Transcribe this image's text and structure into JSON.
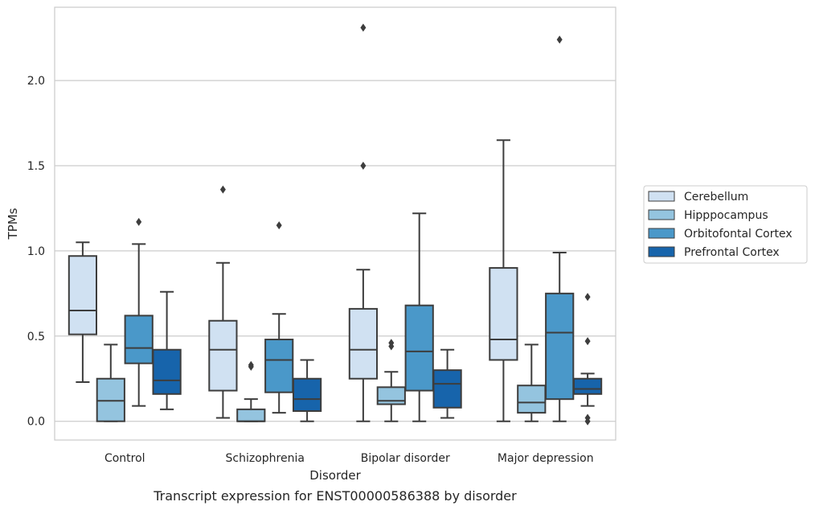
{
  "chart_data": {
    "type": "boxplot",
    "caption": "Transcript expression for ENST00000586388 by disorder",
    "xlabel": "Disorder",
    "ylabel": "TPMs",
    "ylim": [
      -0.11,
      2.43
    ],
    "yticks": [
      0.0,
      0.5,
      1.0,
      1.5,
      2.0
    ],
    "ytick_labels": [
      "0.0",
      "0.5",
      "1.0",
      "1.5",
      "2.0"
    ],
    "grid": "horizontal",
    "legend_position": "right",
    "categories": [
      "Control",
      "Schizophrenia",
      "Bipolar disorder",
      "Major depression"
    ],
    "series": [
      {
        "name": "Cerebellum",
        "color": "#d0e1f2",
        "boxes": [
          {
            "whislo": 0.23,
            "q1": 0.51,
            "med": 0.65,
            "q3": 0.97,
            "whishi": 1.05,
            "fliers": []
          },
          {
            "whislo": 0.02,
            "q1": 0.18,
            "med": 0.42,
            "q3": 0.59,
            "whishi": 0.93,
            "fliers": [
              1.36
            ]
          },
          {
            "whislo": 0.0,
            "q1": 0.25,
            "med": 0.42,
            "q3": 0.66,
            "whishi": 0.89,
            "fliers": [
              1.5,
              2.31
            ]
          },
          {
            "whislo": 0.0,
            "q1": 0.36,
            "med": 0.48,
            "q3": 0.9,
            "whishi": 1.65,
            "fliers": []
          }
        ]
      },
      {
        "name": "Hipppocampus",
        "color": "#94c4df",
        "boxes": [
          {
            "whislo": 0.0,
            "q1": 0.0,
            "med": 0.12,
            "q3": 0.25,
            "whishi": 0.45,
            "fliers": []
          },
          {
            "whislo": 0.0,
            "q1": 0.0,
            "med": 0.0,
            "q3": 0.07,
            "whishi": 0.13,
            "fliers": [
              0.32,
              0.33
            ]
          },
          {
            "whislo": 0.0,
            "q1": 0.1,
            "med": 0.12,
            "q3": 0.2,
            "whishi": 0.29,
            "fliers": [
              0.44,
              0.46
            ]
          },
          {
            "whislo": 0.0,
            "q1": 0.05,
            "med": 0.11,
            "q3": 0.21,
            "whishi": 0.45,
            "fliers": []
          }
        ]
      },
      {
        "name": "Orbitofontal Cortex",
        "color": "#4a98c9",
        "boxes": [
          {
            "whislo": 0.09,
            "q1": 0.34,
            "med": 0.43,
            "q3": 0.62,
            "whishi": 1.04,
            "fliers": [
              1.17
            ]
          },
          {
            "whislo": 0.05,
            "q1": 0.17,
            "med": 0.36,
            "q3": 0.48,
            "whishi": 0.63,
            "fliers": [
              1.15
            ]
          },
          {
            "whislo": 0.0,
            "q1": 0.18,
            "med": 0.41,
            "q3": 0.68,
            "whishi": 1.22,
            "fliers": []
          },
          {
            "whislo": 0.0,
            "q1": 0.13,
            "med": 0.52,
            "q3": 0.75,
            "whishi": 0.99,
            "fliers": [
              2.24
            ]
          }
        ]
      },
      {
        "name": "Prefrontal Cortex",
        "color": "#1764ab",
        "boxes": [
          {
            "whislo": 0.07,
            "q1": 0.16,
            "med": 0.24,
            "q3": 0.42,
            "whishi": 0.76,
            "fliers": []
          },
          {
            "whislo": 0.0,
            "q1": 0.06,
            "med": 0.13,
            "q3": 0.25,
            "whishi": 0.36,
            "fliers": []
          },
          {
            "whislo": 0.02,
            "q1": 0.08,
            "med": 0.22,
            "q3": 0.3,
            "whishi": 0.42,
            "fliers": []
          },
          {
            "whislo": 0.09,
            "q1": 0.16,
            "med": 0.19,
            "q3": 0.25,
            "whishi": 0.28,
            "fliers": [
              0.73,
              0.47,
              0.02,
              0.0
            ]
          }
        ]
      }
    ]
  }
}
